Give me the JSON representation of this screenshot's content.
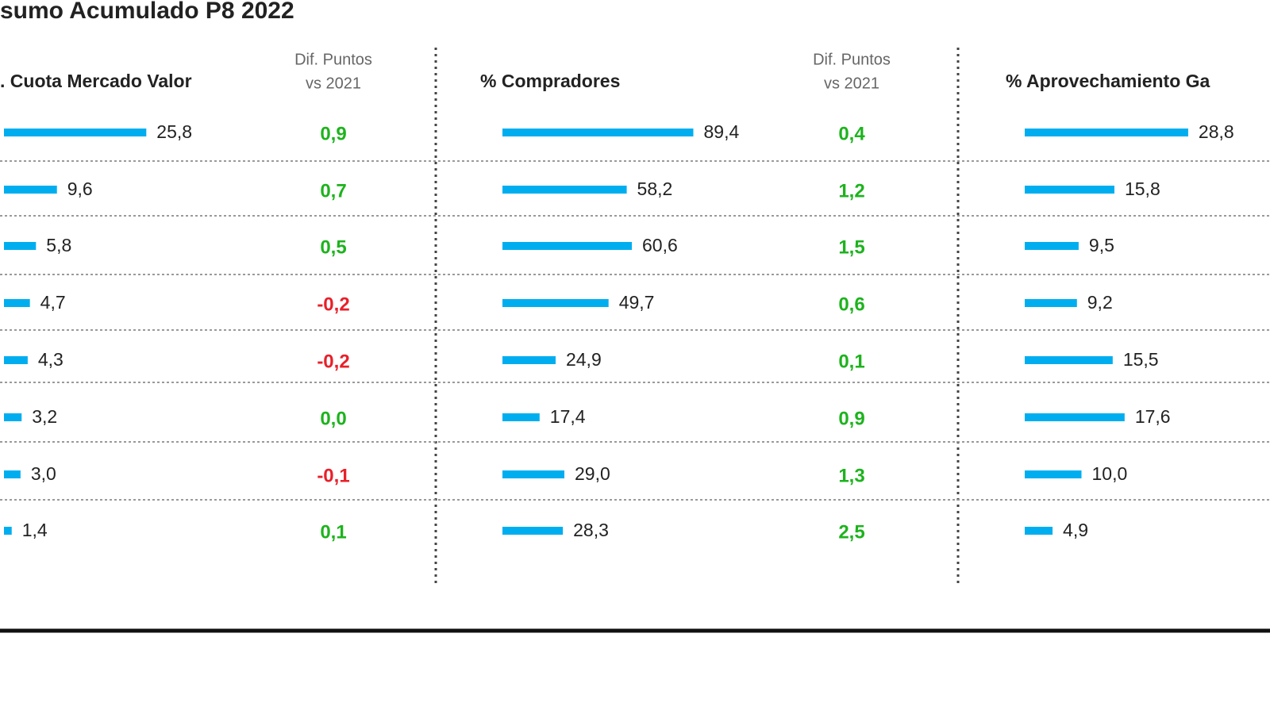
{
  "title": "sumo Acumulado P8 2022",
  "chart_data": [
    {
      "type": "bar",
      "title": ". Cuota Mercado Valor",
      "color": "#00aeef",
      "values": [
        25.8,
        9.6,
        5.8,
        4.7,
        4.3,
        3.2,
        3.0,
        1.4
      ],
      "value_labels": [
        "25,8",
        "9,6",
        "5,8",
        "4,7",
        "4,3",
        "3,2",
        "3,0",
        "1,4"
      ],
      "diff": {
        "title": [
          "Dif. Puntos",
          "vs 2021"
        ],
        "positive_color": "#1db31d",
        "negative_color": "#e8202a",
        "values": [
          0.9,
          0.7,
          0.5,
          -0.2,
          -0.2,
          0.0,
          -0.1,
          0.1
        ],
        "value_labels": [
          "0,9",
          "0,7",
          "0,5",
          "-0,2",
          "-0,2",
          "0,0",
          "-0,1",
          "0,1"
        ]
      }
    },
    {
      "type": "bar",
      "title": "% Compradores",
      "color": "#00aeef",
      "values": [
        89.4,
        58.2,
        60.6,
        49.7,
        24.9,
        17.4,
        29.0,
        28.3
      ],
      "value_labels": [
        "89,4",
        "58,2",
        "60,6",
        "49,7",
        "24,9",
        "17,4",
        "29,0",
        "28,3"
      ],
      "diff": {
        "title": [
          "Dif. Puntos",
          "vs 2021"
        ],
        "positive_color": "#1db31d",
        "negative_color": "#e8202a",
        "values": [
          0.4,
          1.2,
          1.5,
          0.6,
          0.1,
          0.9,
          1.3,
          2.5
        ],
        "value_labels": [
          "0,4",
          "1,2",
          "1,5",
          "0,6",
          "0,1",
          "0,9",
          "1,3",
          "2,5"
        ]
      }
    },
    {
      "type": "bar",
      "title": "% Aprovechamiento Ga",
      "color": "#00aeef",
      "values": [
        28.8,
        15.8,
        9.5,
        9.2,
        15.5,
        17.6,
        10.0,
        4.9
      ],
      "value_labels": [
        "28,8",
        "15,8",
        "9,5",
        "9,2",
        "15,5",
        "17,6",
        "10,0",
        "4,9"
      ]
    }
  ]
}
